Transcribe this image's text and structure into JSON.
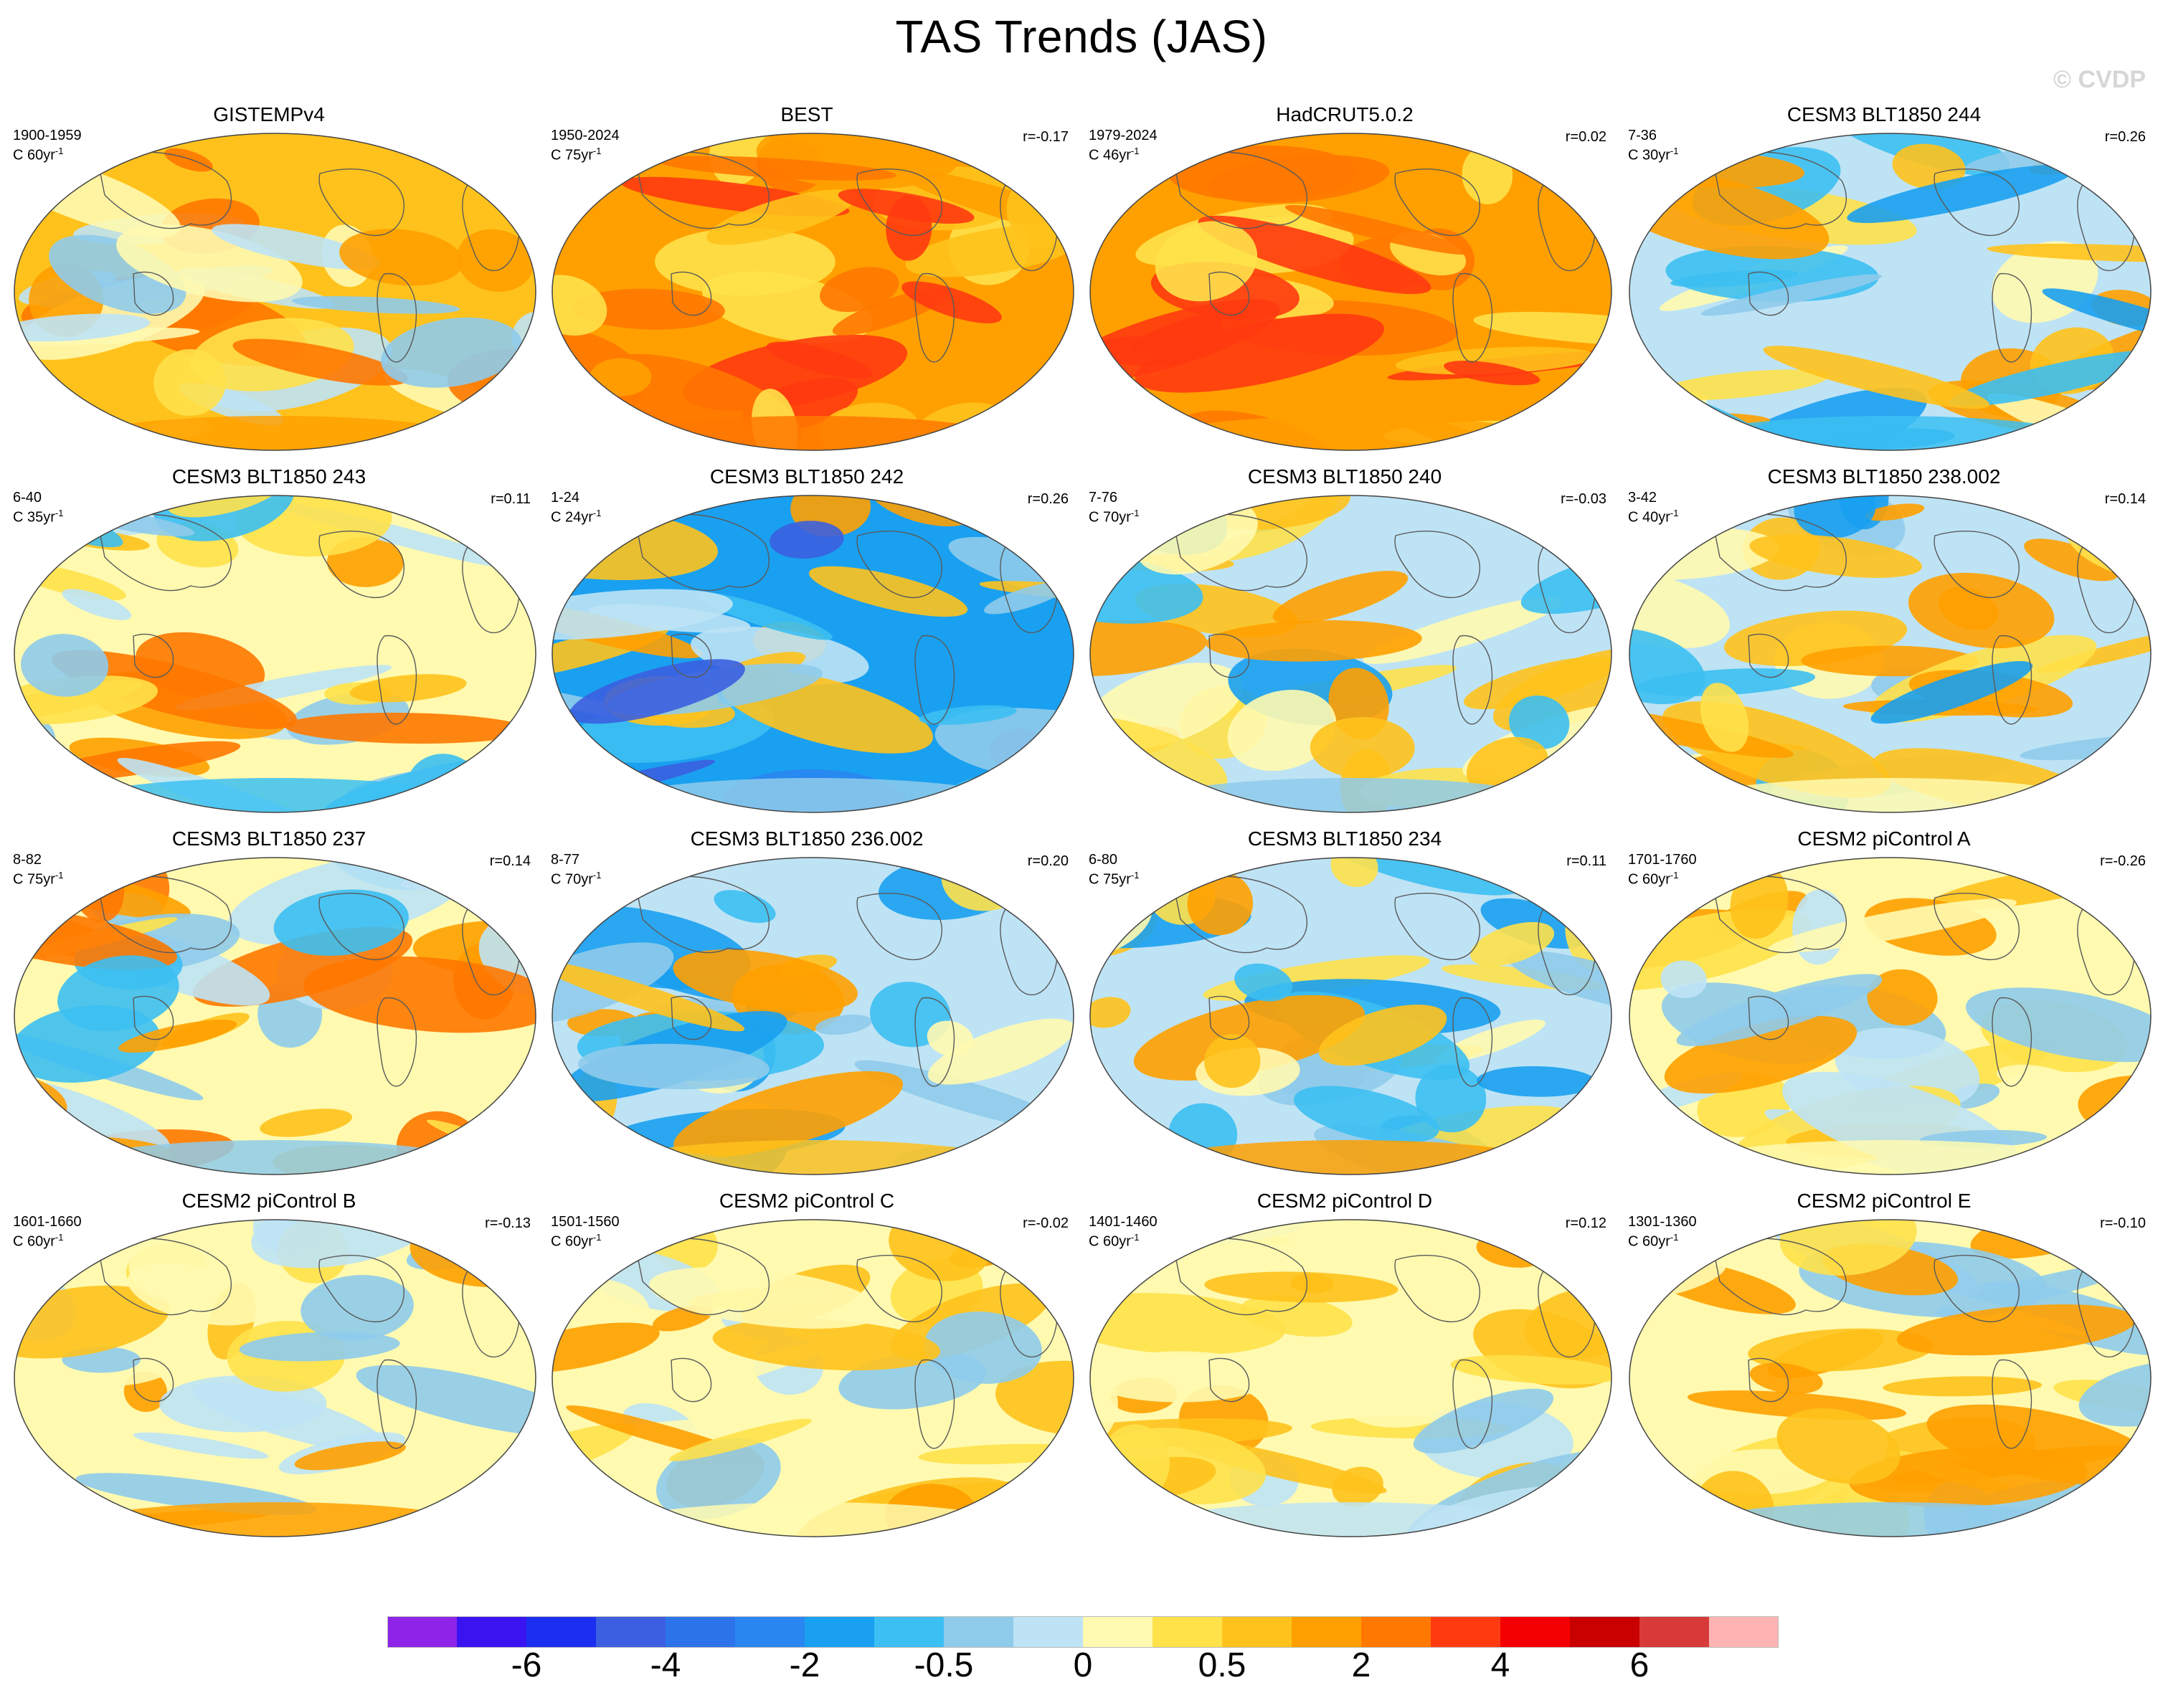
{
  "title": "TAS Trends (JAS)",
  "watermark": "© CVDP",
  "panels": [
    {
      "title": "GISTEMPv4",
      "years": "1900-1959",
      "scale": "C 60yr",
      "corr": "",
      "style": "obs_warm",
      "seed": 3
    },
    {
      "title": "BEST",
      "years": "1950-2024",
      "scale": "C 75yr",
      "corr": "r=-0.17",
      "style": "obs_hot",
      "seed": 7
    },
    {
      "title": "HadCRUT5.0.2",
      "years": "1979-2024",
      "scale": "C 46yr",
      "corr": "r=0.02",
      "style": "obs_hot",
      "seed": 11
    },
    {
      "title": "CESM3 BLT1850 244",
      "years": "7-36",
      "scale": "C 30yr",
      "corr": "r=0.26",
      "style": "mixed_cool",
      "seed": 13
    },
    {
      "title": "CESM3 BLT1850 243",
      "years": "6-40",
      "scale": "C 35yr",
      "corr": "r=0.11",
      "style": "mixed",
      "seed": 17
    },
    {
      "title": "CESM3 BLT1850 242",
      "years": "1-24",
      "scale": "C 24yr",
      "corr": "r=0.26",
      "style": "cold",
      "seed": 19
    },
    {
      "title": "CESM3 BLT1850 240",
      "years": "7-76",
      "scale": "C 70yr",
      "corr": "r=-0.03",
      "style": "mixed_cool",
      "seed": 23
    },
    {
      "title": "CESM3 BLT1850 238.002",
      "years": "3-42",
      "scale": "C 40yr",
      "corr": "r=0.14",
      "style": "mixed_cool",
      "seed": 29
    },
    {
      "title": "CESM3 BLT1850 237",
      "years": "8-82",
      "scale": "C 75yr",
      "corr": "r=0.14",
      "style": "mixed",
      "seed": 31
    },
    {
      "title": "CESM3 BLT1850 236.002",
      "years": "8-77",
      "scale": "C 70yr",
      "corr": "r=0.20",
      "style": "mixed_cool",
      "seed": 37
    },
    {
      "title": "CESM3 BLT1850 234",
      "years": "6-80",
      "scale": "C 75yr",
      "corr": "r=0.11",
      "style": "mixed_cool",
      "seed": 41
    },
    {
      "title": "CESM2 piControl A",
      "years": "1701-1760",
      "scale": "C 60yr",
      "corr": "r=-0.26",
      "style": "mild",
      "seed": 43
    },
    {
      "title": "CESM2 piControl B",
      "years": "1601-1660",
      "scale": "C 60yr",
      "corr": "r=-0.13",
      "style": "mild",
      "seed": 47
    },
    {
      "title": "CESM2 piControl C",
      "years": "1501-1560",
      "scale": "C 60yr",
      "corr": "r=-0.02",
      "style": "mild",
      "seed": 53
    },
    {
      "title": "CESM2 piControl D",
      "years": "1401-1460",
      "scale": "C 60yr",
      "corr": "r=0.12",
      "style": "mild",
      "seed": 59
    },
    {
      "title": "CESM2 piControl E",
      "years": "1301-1360",
      "scale": "C 60yr",
      "corr": "r=-0.10",
      "style": "mild",
      "seed": 61
    }
  ],
  "scale_exponent": "-1",
  "colorbar": {
    "colors": [
      "#8d24e8",
      "#3a14f0",
      "#1a2ff0",
      "#3b5fe0",
      "#2d74ea",
      "#2a86f0",
      "#1aa0f0",
      "#3cbff2",
      "#8fcbeb",
      "#bee3f5",
      "#fffab0",
      "#ffe14a",
      "#ffc21c",
      "#ffa000",
      "#ff7800",
      "#ff3a10",
      "#f50000",
      "#c80000",
      "#d83a3a",
      "#ffb3b3"
    ],
    "labels": [
      "-6",
      "-4",
      "-2",
      "-0.5",
      "0",
      "0.5",
      "2",
      "4",
      "6"
    ],
    "label_boundaries": [
      2,
      4,
      6,
      8,
      10,
      12,
      14,
      16,
      18
    ]
  }
}
